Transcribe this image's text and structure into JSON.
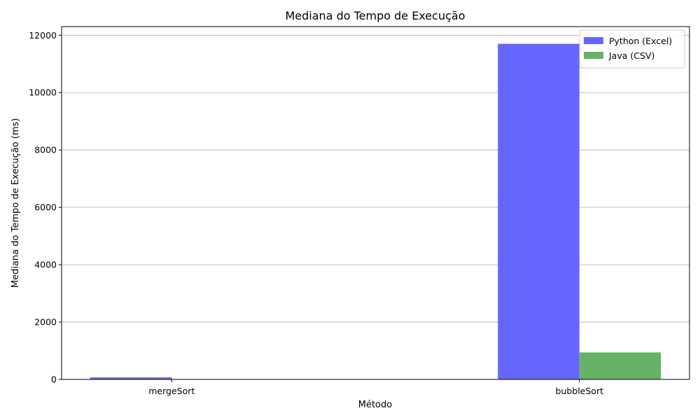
{
  "chart_data": {
    "type": "bar",
    "title": "Mediana do Tempo de Execução",
    "xlabel": "Método",
    "ylabel": "Mediana do Tempo de Execução (ms)",
    "categories": [
      "mergeSort",
      "bubbleSort"
    ],
    "series": [
      {
        "name": "Python (Excel)",
        "values": [
          70,
          11700
        ],
        "color": "#6666ff"
      },
      {
        "name": "Java (CSV)",
        "values": [
          10,
          940
        ],
        "color": "#66b266"
      }
    ],
    "ylim": [
      0,
      12300
    ],
    "yticks": [
      0,
      2000,
      4000,
      6000,
      8000,
      10000,
      12000
    ],
    "y_grid": true,
    "x_grid": false,
    "legend_position": "top-right"
  }
}
